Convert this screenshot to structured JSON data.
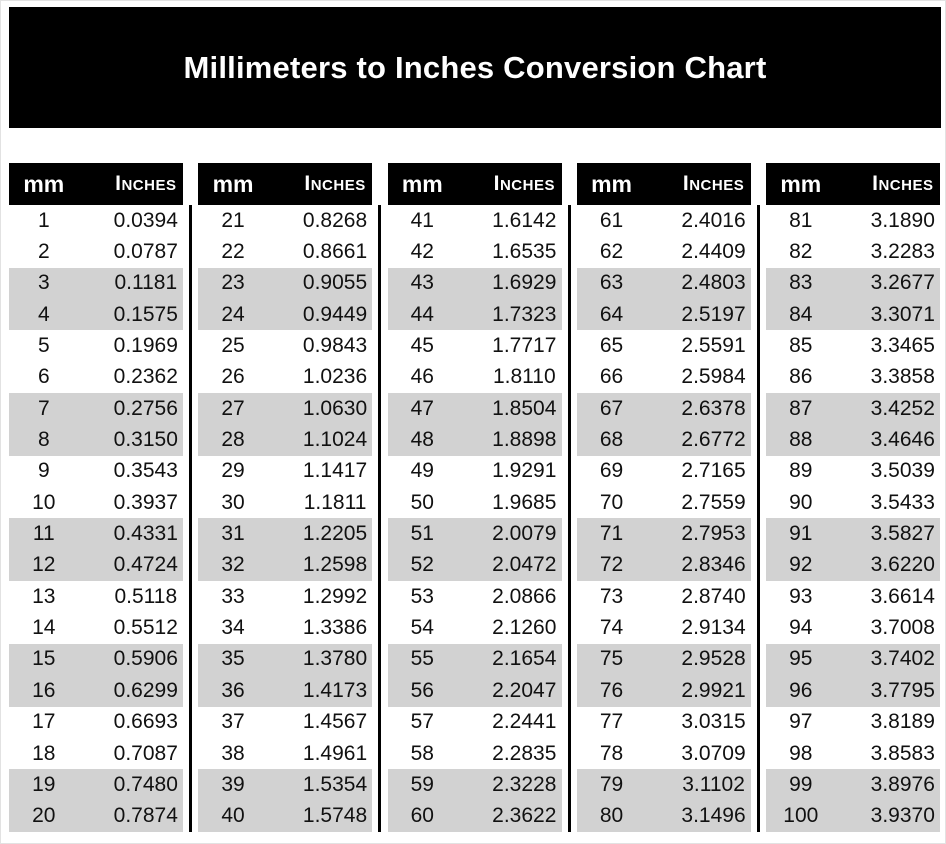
{
  "title": "Millimeters to Inches Conversion Chart",
  "colors": {
    "banner_bg": "#000000",
    "banner_text": "#ffffff",
    "header_bg": "#000000",
    "header_text": "#ffffff",
    "row_stripe": "#d2d2d2",
    "row_plain": "#ffffff",
    "cell_text": "#111111",
    "divider": "#000000"
  },
  "columns": {
    "mm_label": "mm",
    "inches_label": "Inches"
  },
  "chart_data": {
    "type": "table",
    "title": "Millimeters to Inches Conversion Chart",
    "columns": [
      "mm",
      "Inches"
    ],
    "layout": {
      "column_groups": 5,
      "rows_per_group": 20,
      "striping": "rows shaded light gray in alternating pairs (3-4, 7-8, 11-12, 15-16, 19-20 of each group)"
    },
    "tables": [
      {
        "rows": [
          [
            1,
            "0.0394"
          ],
          [
            2,
            "0.0787"
          ],
          [
            3,
            "0.1181"
          ],
          [
            4,
            "0.1575"
          ],
          [
            5,
            "0.1969"
          ],
          [
            6,
            "0.2362"
          ],
          [
            7,
            "0.2756"
          ],
          [
            8,
            "0.3150"
          ],
          [
            9,
            "0.3543"
          ],
          [
            10,
            "0.3937"
          ],
          [
            11,
            "0.4331"
          ],
          [
            12,
            "0.4724"
          ],
          [
            13,
            "0.5118"
          ],
          [
            14,
            "0.5512"
          ],
          [
            15,
            "0.5906"
          ],
          [
            16,
            "0.6299"
          ],
          [
            17,
            "0.6693"
          ],
          [
            18,
            "0.7087"
          ],
          [
            19,
            "0.7480"
          ],
          [
            20,
            "0.7874"
          ]
        ]
      },
      {
        "rows": [
          [
            21,
            "0.8268"
          ],
          [
            22,
            "0.8661"
          ],
          [
            23,
            "0.9055"
          ],
          [
            24,
            "0.9449"
          ],
          [
            25,
            "0.9843"
          ],
          [
            26,
            "1.0236"
          ],
          [
            27,
            "1.0630"
          ],
          [
            28,
            "1.1024"
          ],
          [
            29,
            "1.1417"
          ],
          [
            30,
            "1.1811"
          ],
          [
            31,
            "1.2205"
          ],
          [
            32,
            "1.2598"
          ],
          [
            33,
            "1.2992"
          ],
          [
            34,
            "1.3386"
          ],
          [
            35,
            "1.3780"
          ],
          [
            36,
            "1.4173"
          ],
          [
            37,
            "1.4567"
          ],
          [
            38,
            "1.4961"
          ],
          [
            39,
            "1.5354"
          ],
          [
            40,
            "1.5748"
          ]
        ]
      },
      {
        "rows": [
          [
            41,
            "1.6142"
          ],
          [
            42,
            "1.6535"
          ],
          [
            43,
            "1.6929"
          ],
          [
            44,
            "1.7323"
          ],
          [
            45,
            "1.7717"
          ],
          [
            46,
            "1.8110"
          ],
          [
            47,
            "1.8504"
          ],
          [
            48,
            "1.8898"
          ],
          [
            49,
            "1.9291"
          ],
          [
            50,
            "1.9685"
          ],
          [
            51,
            "2.0079"
          ],
          [
            52,
            "2.0472"
          ],
          [
            53,
            "2.0866"
          ],
          [
            54,
            "2.1260"
          ],
          [
            55,
            "2.1654"
          ],
          [
            56,
            "2.2047"
          ],
          [
            57,
            "2.2441"
          ],
          [
            58,
            "2.2835"
          ],
          [
            59,
            "2.3228"
          ],
          [
            60,
            "2.3622"
          ]
        ]
      },
      {
        "rows": [
          [
            61,
            "2.4016"
          ],
          [
            62,
            "2.4409"
          ],
          [
            63,
            "2.4803"
          ],
          [
            64,
            "2.5197"
          ],
          [
            65,
            "2.5591"
          ],
          [
            66,
            "2.5984"
          ],
          [
            67,
            "2.6378"
          ],
          [
            68,
            "2.6772"
          ],
          [
            69,
            "2.7165"
          ],
          [
            70,
            "2.7559"
          ],
          [
            71,
            "2.7953"
          ],
          [
            72,
            "2.8346"
          ],
          [
            73,
            "2.8740"
          ],
          [
            74,
            "2.9134"
          ],
          [
            75,
            "2.9528"
          ],
          [
            76,
            "2.9921"
          ],
          [
            77,
            "3.0315"
          ],
          [
            78,
            "3.0709"
          ],
          [
            79,
            "3.1102"
          ],
          [
            80,
            "3.1496"
          ]
        ]
      },
      {
        "rows": [
          [
            81,
            "3.1890"
          ],
          [
            82,
            "3.2283"
          ],
          [
            83,
            "3.2677"
          ],
          [
            84,
            "3.3071"
          ],
          [
            85,
            "3.3465"
          ],
          [
            86,
            "3.3858"
          ],
          [
            87,
            "3.4252"
          ],
          [
            88,
            "3.4646"
          ],
          [
            89,
            "3.5039"
          ],
          [
            90,
            "3.5433"
          ],
          [
            91,
            "3.5827"
          ],
          [
            92,
            "3.6220"
          ],
          [
            93,
            "3.6614"
          ],
          [
            94,
            "3.7008"
          ],
          [
            95,
            "3.7402"
          ],
          [
            96,
            "3.7795"
          ],
          [
            97,
            "3.8189"
          ],
          [
            98,
            "3.8583"
          ],
          [
            99,
            "3.8976"
          ],
          [
            100,
            "3.9370"
          ]
        ]
      }
    ]
  }
}
